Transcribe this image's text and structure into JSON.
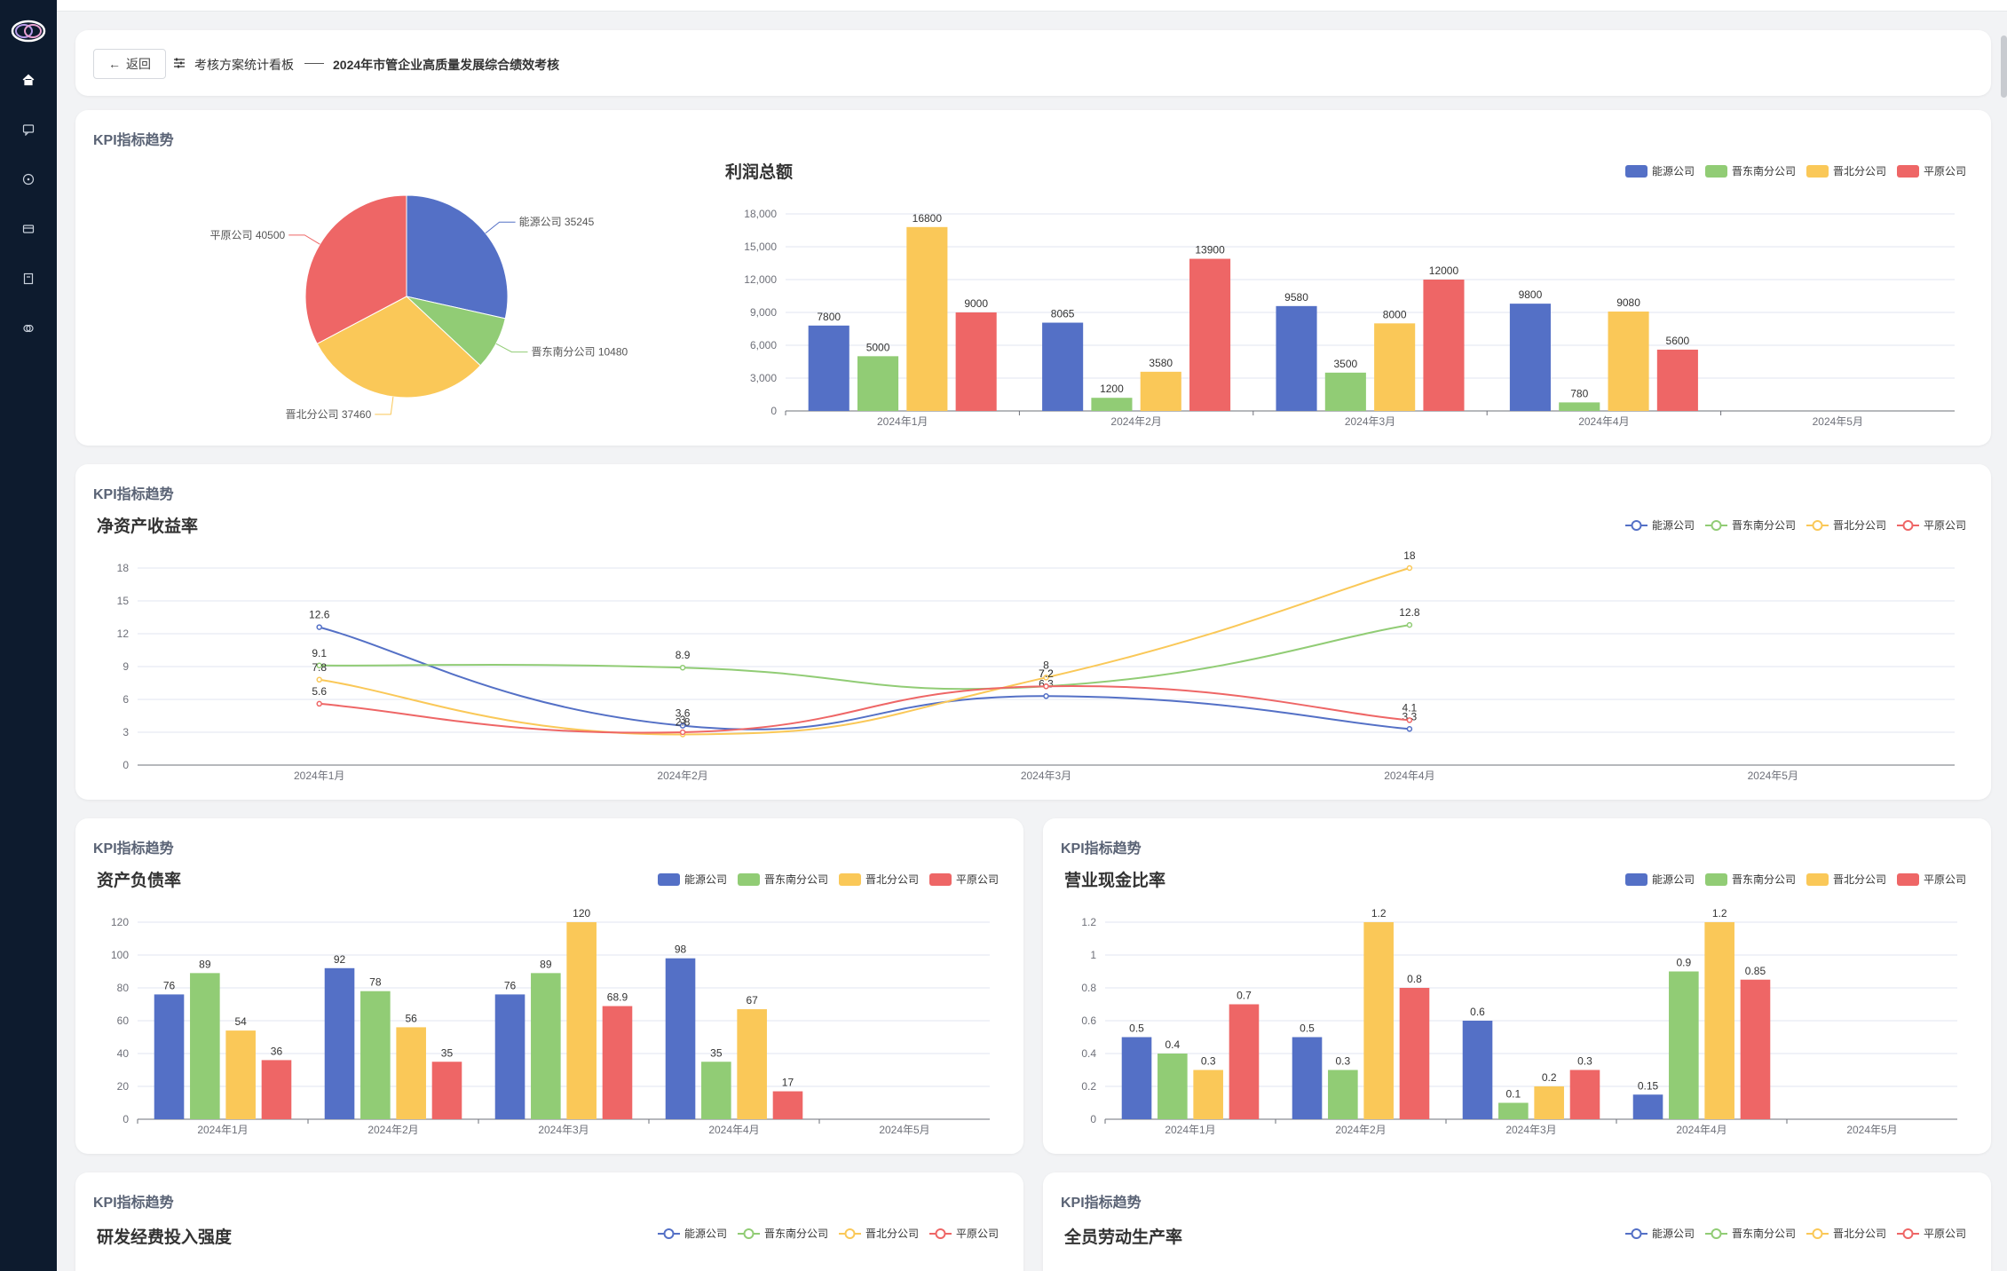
{
  "colors": {
    "blue": "#5470c6",
    "green": "#91cc75",
    "yellow": "#fac858",
    "red": "#ee6666"
  },
  "sidebar": {
    "icons": [
      "home-icon",
      "message-icon",
      "compass-icon",
      "card-icon",
      "book-icon",
      "link-icon"
    ]
  },
  "header": {
    "back_label": "返回",
    "crumb1": "考核方案统计看板",
    "crumb2": "2024年市管企业高质量发展综合绩效考核"
  },
  "companies": [
    "能源公司",
    "晋东南分公司",
    "晋北分公司",
    "平原公司"
  ],
  "months": [
    "2024年1月",
    "2024年2月",
    "2024年3月",
    "2024年4月",
    "2024年5月"
  ],
  "cards": {
    "c1": {
      "section": "KPI指标趋势"
    },
    "c2": {
      "section": "KPI指标趋势"
    },
    "c3": {
      "section": "KPI指标趋势"
    },
    "c4": {
      "section": "KPI指标趋势"
    },
    "c5": {
      "section": "KPI指标趋势",
      "chart_title": "研发经费投入强度"
    },
    "c6": {
      "section": "KPI指标趋势",
      "chart_title": "全员劳动生产率"
    }
  },
  "chart_data": [
    {
      "id": "pie",
      "type": "pie",
      "slices": [
        {
          "name": "能源公司",
          "value": 35245
        },
        {
          "name": "晋东南分公司",
          "value": 10480
        },
        {
          "name": "晋北分公司",
          "value": 37460
        },
        {
          "name": "平原公司",
          "value": 40500
        }
      ]
    },
    {
      "id": "profit",
      "type": "bar",
      "title": "利润总额",
      "categories": [
        "2024年1月",
        "2024年2月",
        "2024年3月",
        "2024年4月",
        "2024年5月"
      ],
      "ylim": [
        0,
        18000
      ],
      "yticks": [
        0,
        3000,
        6000,
        9000,
        12000,
        15000,
        18000
      ],
      "ytick_labels": [
        "0",
        "3,000",
        "6,000",
        "9,000",
        "12,000",
        "15,000",
        "18,000"
      ],
      "series": [
        {
          "name": "能源公司",
          "values": [
            7800,
            8065,
            9580,
            9800,
            null
          ]
        },
        {
          "name": "晋东南分公司",
          "values": [
            5000,
            1200,
            3500,
            780,
            null
          ]
        },
        {
          "name": "晋北分公司",
          "values": [
            16800,
            3580,
            8000,
            9080,
            null
          ]
        },
        {
          "name": "平原公司",
          "values": [
            9000,
            13900,
            12000,
            5600,
            null
          ]
        }
      ]
    },
    {
      "id": "roe",
      "type": "line",
      "title": "净资产收益率",
      "categories": [
        "2024年1月",
        "2024年2月",
        "2024年3月",
        "2024年4月",
        "2024年5月"
      ],
      "ylim": [
        0,
        18
      ],
      "yticks": [
        0,
        3,
        6,
        9,
        12,
        15,
        18
      ],
      "ytick_labels": [
        "0",
        "3",
        "6",
        "9",
        "12",
        "15",
        "18"
      ],
      "series": [
        {
          "name": "能源公司",
          "values": [
            12.6,
            3.6,
            6.3,
            3.3,
            null
          ]
        },
        {
          "name": "晋东南分公司",
          "values": [
            9.1,
            8.9,
            7.2,
            12.8,
            null
          ]
        },
        {
          "name": "晋北分公司",
          "values": [
            7.8,
            2.8,
            8.0,
            18,
            null
          ]
        },
        {
          "name": "平原公司",
          "values": [
            5.6,
            3.0,
            7.2,
            4.1,
            null
          ]
        }
      ]
    },
    {
      "id": "debt",
      "type": "bar",
      "title": "资产负债率",
      "categories": [
        "2024年1月",
        "2024年2月",
        "2024年3月",
        "2024年4月",
        "2024年5月"
      ],
      "ylim": [
        0,
        120
      ],
      "yticks": [
        0,
        20,
        40,
        60,
        80,
        100,
        120
      ],
      "ytick_labels": [
        "0",
        "20",
        "40",
        "60",
        "80",
        "100",
        "120"
      ],
      "series": [
        {
          "name": "能源公司",
          "values": [
            76,
            92,
            76,
            98,
            null
          ]
        },
        {
          "name": "晋东南分公司",
          "values": [
            89,
            78,
            89,
            35,
            null
          ]
        },
        {
          "name": "晋北分公司",
          "values": [
            54,
            56,
            120,
            67,
            null
          ]
        },
        {
          "name": "平原公司",
          "values": [
            36,
            35,
            68.9,
            17,
            null
          ]
        }
      ]
    },
    {
      "id": "cash",
      "type": "bar",
      "title": "营业现金比率",
      "categories": [
        "2024年1月",
        "2024年2月",
        "2024年3月",
        "2024年4月",
        "2024年5月"
      ],
      "ylim": [
        0,
        1.2
      ],
      "yticks": [
        0,
        0.2,
        0.4,
        0.6,
        0.8,
        1,
        1.2
      ],
      "ytick_labels": [
        "0",
        "0.2",
        "0.4",
        "0.6",
        "0.8",
        "1",
        "1.2"
      ],
      "series": [
        {
          "name": "能源公司",
          "values": [
            0.5,
            0.5,
            0.6,
            0.15,
            null
          ]
        },
        {
          "name": "晋东南分公司",
          "values": [
            0.4,
            0.3,
            0.1,
            0.9,
            null
          ]
        },
        {
          "name": "晋北分公司",
          "values": [
            0.3,
            1.2,
            0.2,
            1.2,
            null
          ]
        },
        {
          "name": "平原公司",
          "values": [
            0.7,
            0.8,
            0.3,
            0.85,
            null
          ]
        }
      ]
    }
  ]
}
